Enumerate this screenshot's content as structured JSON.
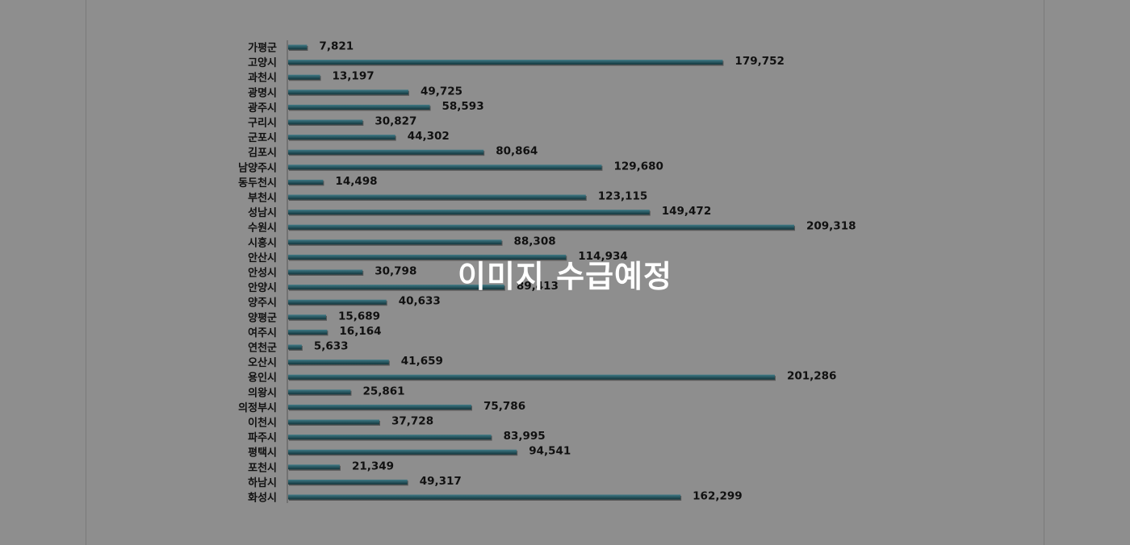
{
  "overlay_text": "이미지 수급예정",
  "colors": {
    "background": "#8e8e8e",
    "bar_top": "#3f7a86",
    "bar_bottom": "#12353c",
    "axis": "#555555",
    "text": "#111111",
    "overlay": "#ffffff"
  },
  "chart_data": {
    "type": "bar",
    "orientation": "horizontal",
    "title": "",
    "xlabel": "",
    "ylabel": "",
    "grid": false,
    "legend": "none",
    "xlim": [
      0,
      240000
    ],
    "categories": [
      "가평군",
      "고양시",
      "과천시",
      "광명시",
      "광주시",
      "구리시",
      "군포시",
      "김포시",
      "남양주시",
      "동두천시",
      "부천시",
      "성남시",
      "수원시",
      "시흥시",
      "안산시",
      "안성시",
      "안양시",
      "양주시",
      "양평군",
      "여주시",
      "연천군",
      "오산시",
      "용인시",
      "의왕시",
      "의정부시",
      "이천시",
      "파주시",
      "평택시",
      "포천시",
      "하남시",
      "화성시"
    ],
    "values": [
      7821,
      179752,
      13197,
      49725,
      58593,
      30827,
      44302,
      80864,
      129680,
      14498,
      123115,
      149472,
      209318,
      88308,
      114934,
      30798,
      89413,
      40633,
      15689,
      16164,
      5633,
      41659,
      201286,
      25861,
      75786,
      37728,
      83995,
      94541,
      21349,
      49317,
      162299
    ],
    "value_labels": [
      "7,821",
      "179,752",
      "13,197",
      "49,725",
      "58,593",
      "30,827",
      "44,302",
      "80,864",
      "129,680",
      "14,498",
      "123,115",
      "149,472",
      "209,318",
      "88,308",
      "114,934",
      "30,798",
      "89,413",
      "40,633",
      "15,689",
      "16,164",
      "5,633",
      "41,659",
      "201,286",
      "25,861",
      "75,786",
      "37,728",
      "83,995",
      "94,541",
      "21,349",
      "49,317",
      "162,299"
    ]
  }
}
